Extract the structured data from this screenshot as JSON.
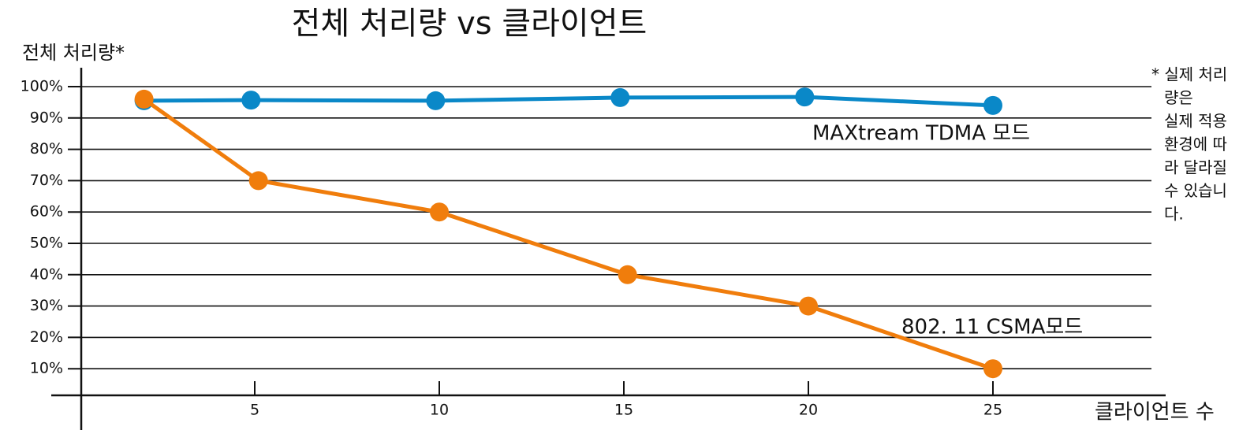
{
  "chart_data": {
    "type": "line",
    "title": "전체 처리량 vs 클라이언트",
    "ylabel": "전체 처리량*",
    "xlabel": "클라이언트 수",
    "note": [
      "* 실제 처리",
      "량은",
      "실제 적용",
      "환경에 따",
      "라 달라질",
      "수 있습니",
      "다."
    ],
    "xlim": [
      0,
      30
    ],
    "xticks": [
      5,
      10,
      15,
      20,
      25
    ],
    "ylim": [
      0,
      100
    ],
    "yticks": [
      {
        "value": 10,
        "label": "10%"
      },
      {
        "value": 20,
        "label": "20%"
      },
      {
        "value": 30,
        "label": "30%"
      },
      {
        "value": 40,
        "label": "40%"
      },
      {
        "value": 50,
        "label": "50%"
      },
      {
        "value": 60,
        "label": "60%"
      },
      {
        "value": 70,
        "label": "70%"
      },
      {
        "value": 80,
        "label": "80%"
      },
      {
        "value": 90,
        "label": "90%"
      },
      {
        "value": 100,
        "label": "100%"
      }
    ],
    "grid": true,
    "series": [
      {
        "name": "MAXtream TDMA 모드",
        "color": "#0a88c8",
        "x": [
          2,
          4.9,
          9.9,
          14.9,
          19.9,
          25
        ],
        "values": [
          95.5,
          95.7,
          95.5,
          96.5,
          96.7,
          94
        ]
      },
      {
        "name": "802. 11 CSMA모드",
        "color": "#f07d0c",
        "x": [
          2,
          5.1,
          10,
          15.1,
          20,
          25
        ],
        "values": [
          96,
          70,
          60,
          40,
          30,
          10
        ]
      }
    ]
  }
}
